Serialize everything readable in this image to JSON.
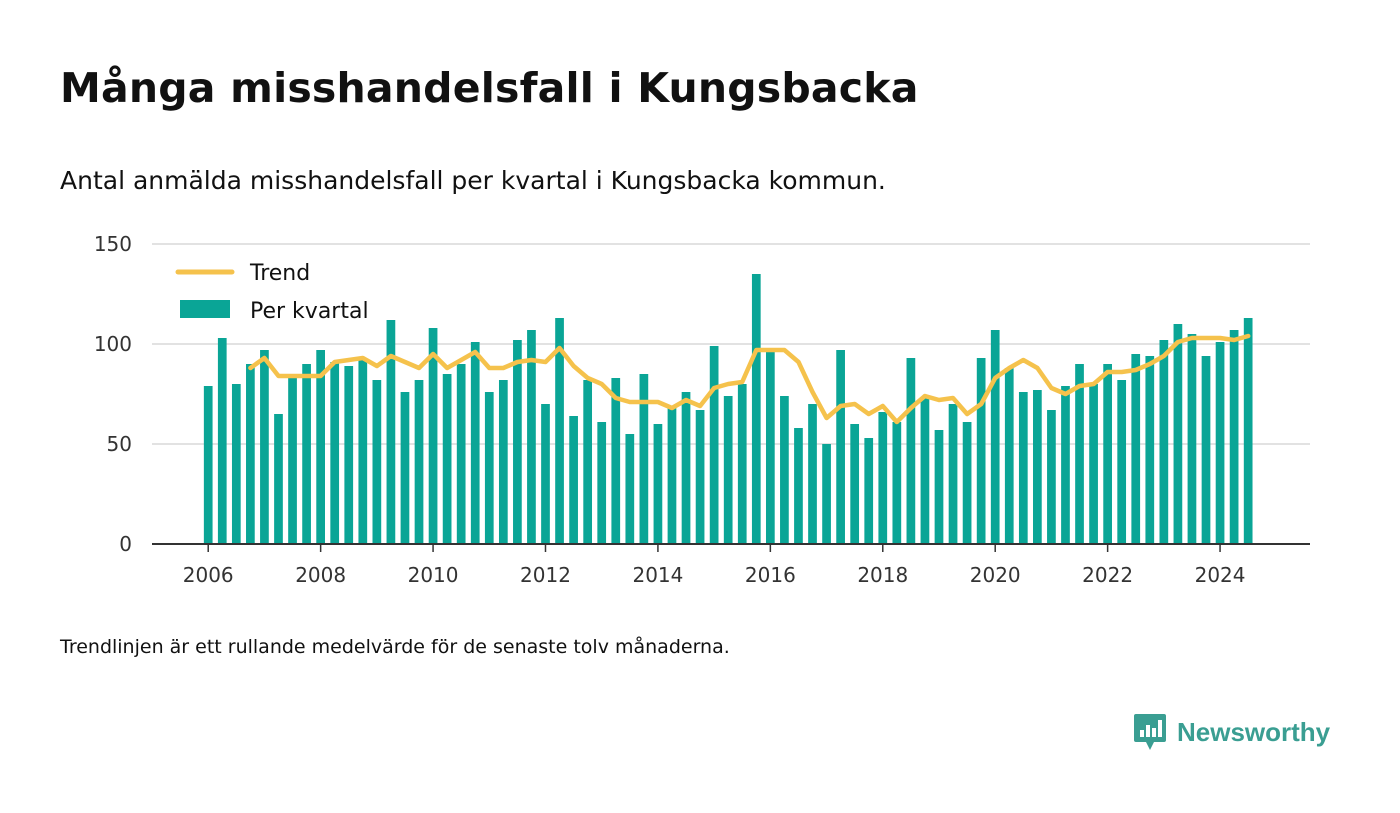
{
  "header": {
    "title": "Många misshandelsfall i Kungsbacka",
    "subtitle": "Antal anmälda misshandelsfall per kvartal i Kungsbacka kommun."
  },
  "footer": {
    "note": "Trendlinjen är ett rullande medelvärde för de senaste tolv månaderna.",
    "brand": "Newsworthy"
  },
  "colors": {
    "bar": "#0aa596",
    "trend": "#f5c24c",
    "grid": "#d9d9d9",
    "axis": "#333333",
    "brand": "#3a9e92"
  },
  "chart_data": {
    "type": "bar",
    "title": "Många misshandelsfall i Kungsbacka",
    "subtitle": "Antal anmälda misshandelsfall per kvartal i Kungsbacka kommun.",
    "xlabel": "",
    "ylabel": "",
    "ylim": [
      0,
      150
    ],
    "yticks": [
      0,
      50,
      100,
      150
    ],
    "xticks": [
      "2006",
      "2008",
      "2010",
      "2012",
      "2014",
      "2016",
      "2018",
      "2020",
      "2022",
      "2024"
    ],
    "x_range": [
      2005,
      2025.6
    ],
    "grid": true,
    "legend": {
      "position": "top-left",
      "items": [
        "Trend",
        "Per kvartal"
      ]
    },
    "x": [
      2006.0,
      2006.25,
      2006.5,
      2006.75,
      2007.0,
      2007.25,
      2007.5,
      2007.75,
      2008.0,
      2008.25,
      2008.5,
      2008.75,
      2009.0,
      2009.25,
      2009.5,
      2009.75,
      2010.0,
      2010.25,
      2010.5,
      2010.75,
      2011.0,
      2011.25,
      2011.5,
      2011.75,
      2012.0,
      2012.25,
      2012.5,
      2012.75,
      2013.0,
      2013.25,
      2013.5,
      2013.75,
      2014.0,
      2014.25,
      2014.5,
      2014.75,
      2015.0,
      2015.25,
      2015.5,
      2015.75,
      2016.0,
      2016.25,
      2016.5,
      2016.75,
      2017.0,
      2017.25,
      2017.5,
      2017.75,
      2018.0,
      2018.25,
      2018.5,
      2018.75,
      2019.0,
      2019.25,
      2019.5,
      2019.75,
      2020.0,
      2020.25,
      2020.5,
      2020.75,
      2021.0,
      2021.25,
      2021.5,
      2021.75,
      2022.0,
      2022.25,
      2022.5,
      2022.75,
      2023.0,
      2023.25,
      2023.5,
      2023.75,
      2024.0,
      2024.25,
      2024.5
    ],
    "series": [
      {
        "name": "Per kvartal",
        "type": "bar",
        "values": [
          79,
          103,
          80,
          90,
          97,
          65,
          84,
          90,
          97,
          91,
          89,
          92,
          82,
          112,
          76,
          82,
          108,
          85,
          90,
          101,
          76,
          82,
          102,
          107,
          70,
          113,
          64,
          82,
          61,
          83,
          55,
          85,
          60,
          68,
          76,
          67,
          99,
          74,
          80,
          135,
          96,
          74,
          58,
          70,
          50,
          97,
          60,
          53,
          66,
          61,
          93,
          73,
          57,
          70,
          61,
          93,
          107,
          88,
          76,
          77,
          67,
          79,
          90,
          80,
          90,
          82,
          95,
          94,
          102,
          110,
          105,
          94,
          101,
          107,
          113
        ]
      },
      {
        "name": "Trend",
        "type": "line",
        "x": [
          2006.75,
          2007.0,
          2007.25,
          2007.5,
          2007.75,
          2008.0,
          2008.25,
          2008.5,
          2008.75,
          2009.0,
          2009.25,
          2009.5,
          2009.75,
          2010.0,
          2010.25,
          2010.5,
          2010.75,
          2011.0,
          2011.25,
          2011.5,
          2011.75,
          2012.0,
          2012.25,
          2012.5,
          2012.75,
          2013.0,
          2013.25,
          2013.5,
          2013.75,
          2014.0,
          2014.25,
          2014.5,
          2014.75,
          2015.0,
          2015.25,
          2015.5,
          2015.75,
          2016.0,
          2016.25,
          2016.5,
          2016.75,
          2017.0,
          2017.25,
          2017.5,
          2017.75,
          2018.0,
          2018.25,
          2018.5,
          2018.75,
          2019.0,
          2019.25,
          2019.5,
          2019.75,
          2020.0,
          2020.25,
          2020.5,
          2020.75,
          2021.0,
          2021.25,
          2021.5,
          2021.75,
          2022.0,
          2022.25,
          2022.5,
          2022.75,
          2023.0,
          2023.25,
          2023.5,
          2023.75,
          2024.0,
          2024.25,
          2024.5
        ],
        "values": [
          88,
          93,
          84,
          84,
          84,
          84,
          91,
          92,
          93,
          89,
          94,
          91,
          88,
          95,
          88,
          92,
          96,
          88,
          88,
          91,
          92,
          91,
          98,
          89,
          83,
          80,
          73,
          71,
          71,
          71,
          68,
          72,
          69,
          78,
          80,
          81,
          97,
          97,
          97,
          91,
          76,
          63,
          69,
          70,
          65,
          69,
          61,
          68,
          74,
          72,
          73,
          65,
          70,
          83,
          88,
          92,
          88,
          78,
          75,
          79,
          80,
          86,
          86,
          87,
          90,
          94,
          101,
          103,
          103,
          103,
          102,
          104
        ]
      }
    ]
  }
}
